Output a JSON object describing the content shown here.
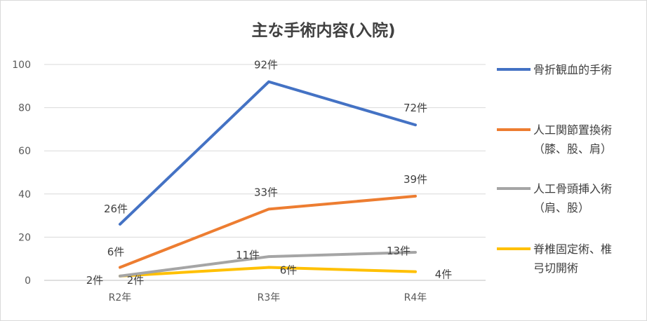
{
  "chart_data": {
    "type": "line",
    "title": "主な手術内容(入院)",
    "xlabel": "",
    "ylabel": "",
    "categories": [
      "R2年",
      "R3年",
      "R4年"
    ],
    "ylim": [
      0,
      100
    ],
    "yticks": [
      "0",
      "20",
      "40",
      "60",
      "80",
      "100"
    ],
    "grid": true,
    "legend_position": "right",
    "series": [
      {
        "name": "骨折観血的手術",
        "color": "#4472c4",
        "values": [
          26,
          92,
          72
        ],
        "labels": [
          "26件",
          "92件",
          "72件"
        ]
      },
      {
        "name": "人工関節置換術（膝、股、肩）",
        "name_lines": [
          "人工関節置換術",
          "（膝、股、肩）"
        ],
        "color": "#ed7d31",
        "values": [
          6,
          33,
          39
        ],
        "labels": [
          "6件",
          "33件",
          "39件"
        ]
      },
      {
        "name": "人工骨頭挿入術（肩、股）",
        "name_lines": [
          "人工骨頭挿入術",
          "（肩、股）"
        ],
        "color": "#a5a5a5",
        "values": [
          2,
          11,
          13
        ],
        "labels": [
          "2件",
          "11件",
          "13件"
        ]
      },
      {
        "name": "脊椎固定術、椎弓切開術",
        "name_lines": [
          "脊椎固定術、椎",
          "弓切開術"
        ],
        "color": "#ffc000",
        "values": [
          2,
          6,
          4
        ],
        "labels": [
          "2件",
          "6件",
          "4件"
        ]
      }
    ]
  }
}
